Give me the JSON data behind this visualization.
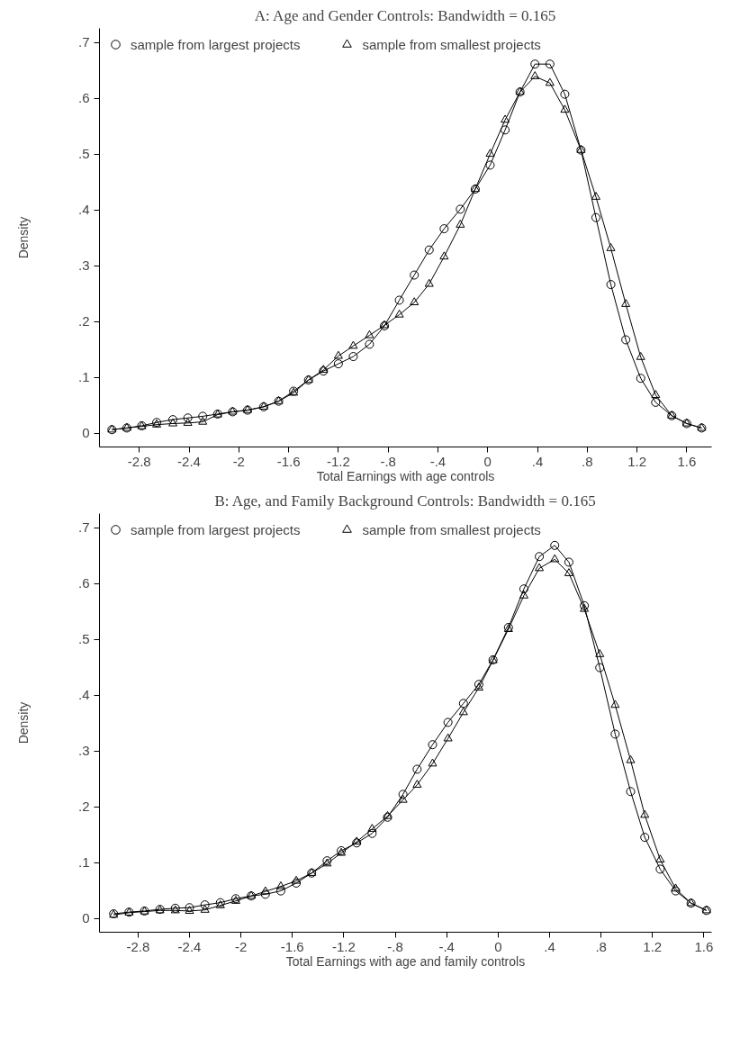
{
  "chart_data": [
    {
      "type": "line",
      "title": "A: Age and Gender Controls: Bandwidth = 0.165",
      "xlabel": "Total Earnings with age controls",
      "ylabel": "Density",
      "x": [
        -3.02,
        -2.9,
        -2.78,
        -2.66,
        -2.53,
        -2.41,
        -2.29,
        -2.17,
        -2.05,
        -1.93,
        -1.8,
        -1.68,
        -1.56,
        -1.44,
        -1.32,
        -1.2,
        -1.08,
        -0.95,
        -0.83,
        -0.71,
        -0.59,
        -0.47,
        -0.35,
        -0.22,
        -0.1,
        0.02,
        0.14,
        0.26,
        0.38,
        0.5,
        0.62,
        0.75,
        0.87,
        0.99,
        1.11,
        1.23,
        1.35,
        1.48,
        1.6,
        1.72
      ],
      "series": [
        {
          "name": "sample from largest projects",
          "color": "#000000",
          "marker": "circle",
          "values": [
            0.006,
            0.009,
            0.013,
            0.019,
            0.024,
            0.027,
            0.03,
            0.034,
            0.038,
            0.041,
            0.047,
            0.057,
            0.075,
            0.095,
            0.111,
            0.124,
            0.137,
            0.159,
            0.192,
            0.238,
            0.283,
            0.328,
            0.366,
            0.401,
            0.437,
            0.48,
            0.543,
            0.611,
            0.661,
            0.661,
            0.607,
            0.507,
            0.386,
            0.266,
            0.167,
            0.098,
            0.055,
            0.031,
            0.017,
            0.009
          ]
        },
        {
          "name": "sample from smallest projects",
          "color": "#000000",
          "marker": "triangle",
          "values": [
            0.006,
            0.009,
            0.012,
            0.015,
            0.017,
            0.018,
            0.02,
            0.033,
            0.038,
            0.041,
            0.047,
            0.057,
            0.072,
            0.095,
            0.113,
            0.138,
            0.156,
            0.175,
            0.193,
            0.212,
            0.234,
            0.267,
            0.316,
            0.373,
            0.437,
            0.5,
            0.561,
            0.611,
            0.639,
            0.627,
            0.579,
            0.507,
            0.423,
            0.331,
            0.231,
            0.136,
            0.068,
            0.031,
            0.017,
            0.009
          ]
        }
      ],
      "xlim": [
        -3.12,
        1.8
      ],
      "ylim": [
        -0.025,
        0.725
      ],
      "xticks": [
        {
          "value": -2.8,
          "label": "-2.8"
        },
        {
          "value": -2.4,
          "label": "-2.4"
        },
        -2,
        {
          "value": -1.6,
          "label": "-1.6"
        },
        {
          "value": -1.2,
          "label": "-1.2"
        },
        {
          "value": -0.8,
          "label": "-.8"
        },
        {
          "value": -0.4,
          "label": "-.4"
        },
        0,
        {
          "value": 0.4,
          "label": ".4"
        },
        {
          "value": 0.8,
          "label": ".8"
        },
        {
          "value": 1.2,
          "label": "1.2"
        },
        {
          "value": 1.6,
          "label": "1.6"
        }
      ],
      "yticks": [
        0,
        {
          "value": 0.1,
          "label": ".1"
        },
        {
          "value": 0.2,
          "label": ".2"
        },
        {
          "value": 0.3,
          "label": ".3"
        },
        {
          "value": 0.4,
          "label": ".4"
        },
        {
          "value": 0.5,
          "label": ".5"
        },
        {
          "value": 0.6,
          "label": ".6"
        },
        {
          "value": 0.7,
          "label": ".7"
        }
      ],
      "grid": false,
      "legend": "top"
    },
    {
      "type": "line",
      "title": "B: Age, and Family Background Controls: Bandwidth = 0.165",
      "xlabel": "Total Earnings with age and family controls",
      "ylabel": "Density",
      "x": [
        -2.99,
        -2.87,
        -2.75,
        -2.63,
        -2.51,
        -2.4,
        -2.28,
        -2.16,
        -2.04,
        -1.92,
        -1.81,
        -1.69,
        -1.57,
        -1.45,
        -1.33,
        -1.22,
        -1.1,
        -0.98,
        -0.86,
        -0.74,
        -0.63,
        -0.51,
        -0.39,
        -0.27,
        -0.15,
        -0.04,
        0.08,
        0.2,
        0.32,
        0.44,
        0.55,
        0.67,
        0.79,
        0.91,
        1.03,
        1.14,
        1.26,
        1.38,
        1.5,
        1.62
      ],
      "series": [
        {
          "name": "sample from largest projects",
          "color": "#000000",
          "marker": "circle",
          "values": [
            0.008,
            0.011,
            0.013,
            0.016,
            0.018,
            0.019,
            0.024,
            0.028,
            0.035,
            0.04,
            0.043,
            0.049,
            0.063,
            0.081,
            0.103,
            0.121,
            0.135,
            0.152,
            0.181,
            0.222,
            0.267,
            0.311,
            0.351,
            0.385,
            0.419,
            0.463,
            0.521,
            0.59,
            0.648,
            0.668,
            0.638,
            0.56,
            0.449,
            0.33,
            0.227,
            0.145,
            0.088,
            0.049,
            0.027,
            0.014
          ]
        },
        {
          "name": "sample from smallest projects",
          "color": "#000000",
          "marker": "triangle",
          "values": [
            0.006,
            0.01,
            0.012,
            0.014,
            0.014,
            0.013,
            0.015,
            0.023,
            0.031,
            0.04,
            0.048,
            0.057,
            0.067,
            0.081,
            0.098,
            0.117,
            0.137,
            0.16,
            0.183,
            0.212,
            0.239,
            0.277,
            0.322,
            0.369,
            0.413,
            0.462,
            0.518,
            0.578,
            0.627,
            0.643,
            0.618,
            0.554,
            0.473,
            0.382,
            0.283,
            0.185,
            0.105,
            0.053,
            0.027,
            0.014
          ]
        }
      ],
      "xlim": [
        -3.1,
        1.66
      ],
      "ylim": [
        -0.025,
        0.725
      ],
      "xticks": [
        {
          "value": -2.8,
          "label": "-2.8"
        },
        {
          "value": -2.4,
          "label": "-2.4"
        },
        -2,
        {
          "value": -1.6,
          "label": "-1.6"
        },
        {
          "value": -1.2,
          "label": "-1.2"
        },
        {
          "value": -0.8,
          "label": "-.8"
        },
        {
          "value": -0.4,
          "label": "-.4"
        },
        0,
        {
          "value": 0.4,
          "label": ".4"
        },
        {
          "value": 0.8,
          "label": ".8"
        },
        {
          "value": 1.2,
          "label": "1.2"
        },
        {
          "value": 1.6,
          "label": "1.6"
        }
      ],
      "yticks": [
        0,
        {
          "value": 0.1,
          "label": ".1"
        },
        {
          "value": 0.2,
          "label": ".2"
        },
        {
          "value": 0.3,
          "label": ".3"
        },
        {
          "value": 0.4,
          "label": ".4"
        },
        {
          "value": 0.5,
          "label": ".5"
        },
        {
          "value": 0.6,
          "label": ".6"
        },
        {
          "value": 0.7,
          "label": ".7"
        }
      ],
      "grid": false,
      "legend": "top"
    }
  ]
}
